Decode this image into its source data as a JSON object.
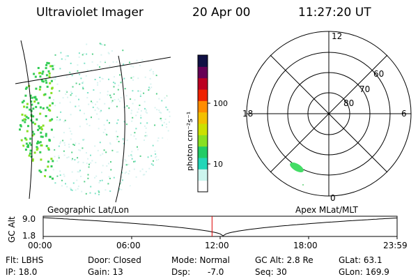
{
  "header": {
    "instrument": "Ultraviolet Imager",
    "date": "20 Apr 00",
    "time": "11:27:20 UT"
  },
  "colorbar": {
    "unit_label": "photon cm⁻²s⁻¹",
    "ticks": [
      "100",
      "10"
    ],
    "colors": [
      "#ffffff",
      "#ccf5ee",
      "#22d6b8",
      "#22cc66",
      "#88e022",
      "#cce000",
      "#f2c000",
      "#ff8c00",
      "#ee2200",
      "#bb0022",
      "#660055",
      "#111144"
    ]
  },
  "polar_plot": {
    "mlt_labels": [
      "12",
      "18",
      "6",
      "0"
    ],
    "lat_labels": [
      "60",
      "70",
      "80"
    ]
  },
  "panel_labels": {
    "left": "Geographic Lat/Lon",
    "right": "Apex MLat/MLT"
  },
  "altitude_plot": {
    "ylabel": "GC Alt",
    "y_ticks": [
      "9.0",
      "1.8"
    ],
    "x_ticks": [
      "00:00",
      "06:00",
      "12:00",
      "18:00",
      "23:59"
    ],
    "current_time_marker": "11:27"
  },
  "footer": {
    "flt": "Flt: LBHS",
    "ip": "IP: 18.0",
    "door": "Door: Closed",
    "gain": "Gain: 13",
    "mode": "Mode: Normal",
    "dsp": "Dsp:",
    "dsp_val": "-7.0",
    "gc_alt": "GC Alt: 2.8 Re",
    "seq": "Seq: 30",
    "glat": "GLat: 63.1",
    "glon": "GLon: 169.9"
  }
}
